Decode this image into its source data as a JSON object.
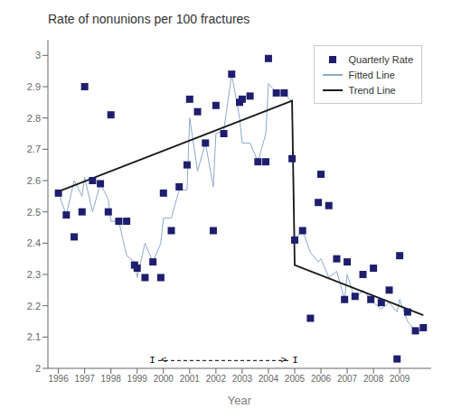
{
  "chart_data": {
    "type": "scatter",
    "title": "Rate of nonunions per 100 fractures",
    "x_label": "Year",
    "xlim": [
      1995.6,
      2010.2
    ],
    "xticks": [
      1996,
      1997,
      1998,
      1999,
      2000,
      2001,
      2002,
      2003,
      2004,
      2005,
      2006,
      2007,
      2008,
      2009
    ],
    "ylim": [
      2.0,
      3.05
    ],
    "yticks": [
      2,
      2.1,
      2.2,
      2.3,
      2.4,
      2.5,
      2.6,
      2.7,
      2.8,
      2.9,
      3
    ],
    "grid": false,
    "legend": "upper right",
    "series": [
      {
        "name": "Quarterly Rate",
        "type": "scatter",
        "marker": "square",
        "color": "#1E1E6E",
        "x": [
          1996.0,
          1996.3,
          1996.6,
          1996.9,
          1997.0,
          1997.3,
          1997.6,
          1997.9,
          1998.0,
          1998.3,
          1998.6,
          1998.9,
          1999.0,
          1999.3,
          1999.6,
          1999.9,
          2000.0,
          2000.3,
          2000.6,
          2000.9,
          2001.0,
          2001.3,
          2001.6,
          2001.9,
          2002.0,
          2002.3,
          2002.6,
          2002.9,
          2003.0,
          2003.3,
          2003.6,
          2003.9,
          2004.0,
          2004.3,
          2004.6,
          2004.9,
          2005.0,
          2005.3,
          2005.6,
          2005.9,
          2006.0,
          2006.3,
          2006.6,
          2006.9,
          2007.0,
          2007.3,
          2007.6,
          2007.9,
          2008.0,
          2008.3,
          2008.6,
          2008.9,
          2009.0,
          2009.3,
          2009.6,
          2009.9
        ],
        "values": [
          2.56,
          2.49,
          2.42,
          2.5,
          2.9,
          2.6,
          2.59,
          2.5,
          2.81,
          2.47,
          2.47,
          2.33,
          2.32,
          2.29,
          2.34,
          2.29,
          2.56,
          2.44,
          2.58,
          2.65,
          2.86,
          2.82,
          2.72,
          2.44,
          2.84,
          2.75,
          2.94,
          2.85,
          2.86,
          2.87,
          2.66,
          2.66,
          2.99,
          2.88,
          2.88,
          2.67,
          2.41,
          2.44,
          2.16,
          2.53,
          2.62,
          2.52,
          2.35,
          2.22,
          2.34,
          2.23,
          2.3,
          2.22,
          2.32,
          2.21,
          2.25,
          2.03,
          2.36,
          2.18,
          2.12,
          2.13
        ]
      },
      {
        "name": "Fitted Line",
        "type": "line",
        "line_style": "solid",
        "color": "#8BAACB",
        "x": [
          1996.0,
          1996.3,
          1996.6,
          1996.9,
          1997.0,
          1997.3,
          1997.6,
          1997.9,
          1998.0,
          1998.3,
          1998.6,
          1998.9,
          1999.0,
          1999.3,
          1999.6,
          1999.9,
          2000.0,
          2000.3,
          2000.6,
          2000.9,
          2001.0,
          2001.3,
          2001.6,
          2001.9,
          2002.0,
          2002.3,
          2002.6,
          2002.9,
          2003.0,
          2003.3,
          2003.6,
          2003.9,
          2004.0,
          2004.3,
          2004.6,
          2004.9,
          2005.0,
          2005.3,
          2005.6,
          2005.9,
          2006.0,
          2006.3,
          2006.6,
          2006.9,
          2007.0,
          2007.3,
          2007.6,
          2007.9,
          2008.0,
          2008.3,
          2008.6,
          2008.9,
          2009.0,
          2009.3,
          2009.6,
          2009.9
        ],
        "values": [
          2.56,
          2.49,
          2.6,
          2.55,
          2.61,
          2.5,
          2.59,
          2.54,
          2.47,
          2.47,
          2.36,
          2.34,
          2.29,
          2.4,
          2.34,
          2.4,
          2.48,
          2.48,
          2.57,
          2.57,
          2.8,
          2.63,
          2.72,
          2.58,
          2.75,
          2.76,
          2.94,
          2.8,
          2.72,
          2.72,
          2.66,
          2.75,
          2.91,
          2.88,
          2.88,
          2.85,
          2.41,
          2.44,
          2.37,
          2.34,
          2.35,
          2.29,
          2.31,
          2.22,
          2.3,
          2.22,
          2.25,
          2.22,
          2.21,
          2.19,
          2.21,
          2.18,
          2.22,
          2.15,
          2.12,
          2.12
        ]
      },
      {
        "name": "Trend Line",
        "type": "line",
        "line_style": "solid",
        "color": "#1a1a1a",
        "x": [
          1996.0,
          2004.9,
          2005.0,
          2009.9
        ],
        "values": [
          2.565,
          2.855,
          2.33,
          2.17
        ]
      }
    ],
    "annotations": [
      {
        "x": [
          1999.8,
          2004.8
        ],
        "y": [
          2.025,
          2.025
        ],
        "line_style": "dashed",
        "color": "#000000",
        "texts": [
          "I",
          "<",
          ">",
          "I"
        ]
      }
    ]
  }
}
